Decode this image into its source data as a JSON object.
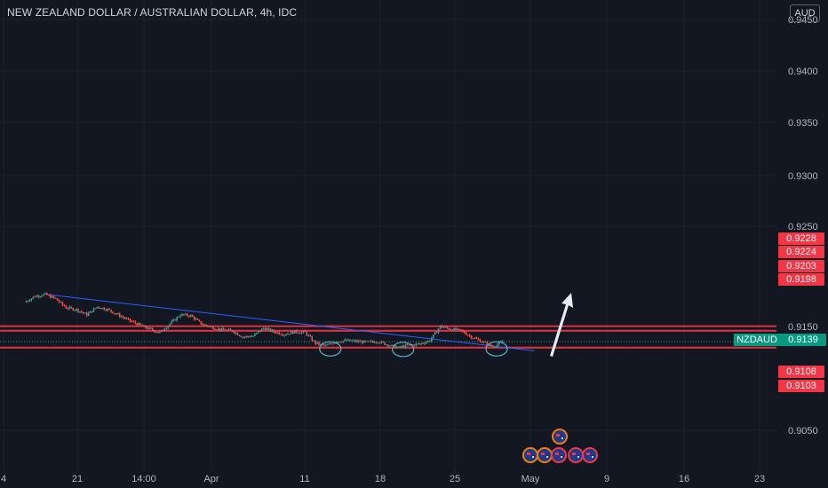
{
  "header": {
    "title": "NEW ZEALAND DOLLAR / AUSTRALIAN DOLLAR, 4h, IDC",
    "currency": "AUD"
  },
  "price_labels": {
    "symbol": "NZDAUD",
    "current": "0.9139",
    "levels": [
      "0.9228",
      "0.9224",
      "0.9203",
      "0.9198",
      "0.9108",
      "0.9103"
    ]
  },
  "colors": {
    "background": "#131722",
    "up": "#26a69a",
    "down": "#ef5350",
    "level_line": "#f23645",
    "trendline": "#2962ff",
    "annotation": "#5ab4c8"
  },
  "chart_data": {
    "type": "candlestick",
    "title": "NEW ZEALAND DOLLAR / AUSTRALIAN DOLLAR, 4h, IDC",
    "ylabel": "AUD",
    "ylim": [
      0.902,
      0.946
    ],
    "y_ticks": [
      "0.9450",
      "0.9400",
      "0.9350",
      "0.9300",
      "0.9250",
      "0.9150",
      "0.9050"
    ],
    "x_ticks": [
      "4",
      "21",
      "14:00",
      "Apr",
      "11",
      "18",
      "25",
      "May",
      "9",
      "16",
      "23"
    ],
    "close_path": [
      {
        "x": "Mar 16",
        "close": 0.936
      },
      {
        "x": "Mar 17",
        "close": 0.9395
      },
      {
        "x": "Mar 18",
        "close": 0.9405
      },
      {
        "x": "Mar 19",
        "close": 0.938
      },
      {
        "x": "Mar 20",
        "close": 0.933
      },
      {
        "x": "Mar 21",
        "close": 0.932
      },
      {
        "x": "Mar 22",
        "close": 0.929
      },
      {
        "x": "Mar 23",
        "close": 0.9335
      },
      {
        "x": "Mar 24",
        "close": 0.932
      },
      {
        "x": "Mar 25",
        "close": 0.929
      },
      {
        "x": "Mar 26",
        "close": 0.926
      },
      {
        "x": "Mar 27",
        "close": 0.9235
      },
      {
        "x": "Mar 28",
        "close": 0.921
      },
      {
        "x": "Mar 29",
        "close": 0.919
      },
      {
        "x": "Mar 30",
        "close": 0.924
      },
      {
        "x": "Mar 31",
        "close": 0.929
      },
      {
        "x": "Apr 1",
        "close": 0.9285
      },
      {
        "x": "Apr 2",
        "close": 0.924
      },
      {
        "x": "Apr 3",
        "close": 0.922
      },
      {
        "x": "Apr 4",
        "close": 0.9205
      },
      {
        "x": "Apr 5",
        "close": 0.92
      },
      {
        "x": "Apr 6",
        "close": 0.9165
      },
      {
        "x": "Apr 7",
        "close": 0.917
      },
      {
        "x": "Apr 8",
        "close": 0.9215
      },
      {
        "x": "Apr 9",
        "close": 0.9195
      },
      {
        "x": "Apr 10",
        "close": 0.918
      },
      {
        "x": "Apr 11",
        "close": 0.9195
      },
      {
        "x": "Apr 12",
        "close": 0.919
      },
      {
        "x": "Apr 13",
        "close": 0.913
      },
      {
        "x": "Apr 14",
        "close": 0.9115
      },
      {
        "x": "Apr 15",
        "close": 0.914
      },
      {
        "x": "Apr 16",
        "close": 0.9145
      },
      {
        "x": "Apr 17",
        "close": 0.914
      },
      {
        "x": "Apr 18",
        "close": 0.9135
      },
      {
        "x": "Apr 19",
        "close": 0.914
      },
      {
        "x": "Apr 20",
        "close": 0.912
      },
      {
        "x": "Apr 21",
        "close": 0.9105
      },
      {
        "x": "Apr 22",
        "close": 0.912
      },
      {
        "x": "Apr 23",
        "close": 0.9125
      },
      {
        "x": "Apr 24",
        "close": 0.9145
      },
      {
        "x": "Apr 25",
        "close": 0.9225
      },
      {
        "x": "Apr 26",
        "close": 0.921
      },
      {
        "x": "Apr 27",
        "close": 0.92
      },
      {
        "x": "Apr 28",
        "close": 0.9165
      },
      {
        "x": "Apr 29",
        "close": 0.914
      },
      {
        "x": "Apr 30",
        "close": 0.911
      },
      {
        "x": "May 1",
        "close": 0.9139
      }
    ],
    "horizontal_levels": [
      0.9228,
      0.9224,
      0.9203,
      0.9198,
      0.9108,
      0.9103
    ],
    "current_price": 0.9139,
    "trendline": [
      {
        "x": "Mar 18",
        "y": 0.9405
      },
      {
        "x": "May 4",
        "y": 0.9087
      }
    ],
    "annotations": [
      "ellipse Apr 14",
      "ellipse Apr 21",
      "ellipse Apr 30",
      "up arrow May 2-4"
    ],
    "grid": true
  }
}
